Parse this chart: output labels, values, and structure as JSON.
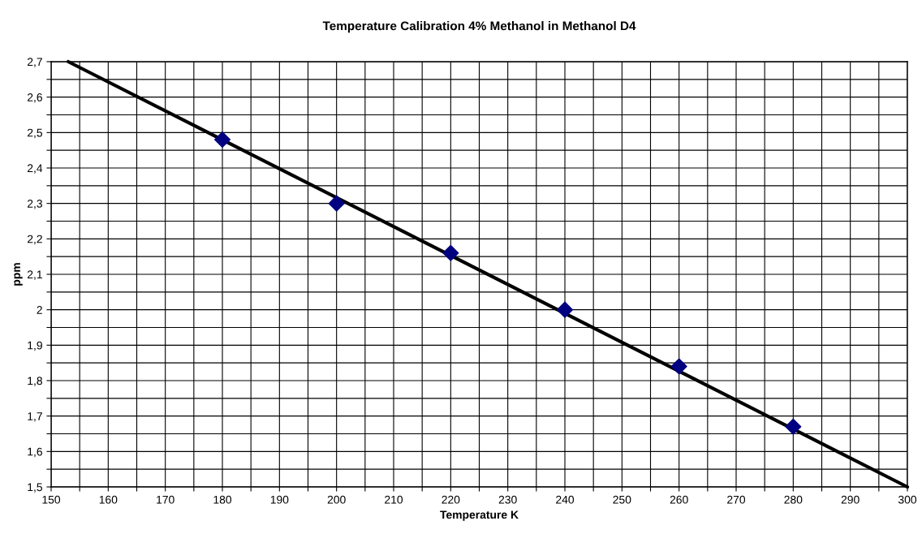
{
  "chart_data": {
    "type": "scatter",
    "title": "Temperature Calibration 4% Methanol in Methanol D4",
    "xlabel": "Temperature K",
    "ylabel": "ppm",
    "series": [
      {
        "color": "#000080",
        "marker": "diamond",
        "x": [
          180,
          200,
          220,
          240,
          260,
          280
        ],
        "values": [
          2.48,
          2.3,
          2.16,
          2.0,
          1.84,
          1.67
        ]
      },
      {
        "type": "line",
        "color": "#000000",
        "marker": "none",
        "line_style": "solid",
        "x": [
          153,
          300
        ],
        "values": [
          2.7,
          1.5
        ]
      }
    ],
    "xlim": [
      150,
      300
    ],
    "ylim": [
      1.5,
      2.7
    ],
    "xticks": [
      150,
      {
        "value": 155,
        "label": null
      },
      160,
      {
        "value": 165,
        "label": null
      },
      170,
      {
        "value": 175,
        "label": null
      },
      180,
      {
        "value": 185,
        "label": null
      },
      190,
      {
        "value": 195,
        "label": null
      },
      200,
      {
        "value": 205,
        "label": null
      },
      210,
      {
        "value": 215,
        "label": null
      },
      220,
      {
        "value": 225,
        "label": null
      },
      230,
      {
        "value": 235,
        "label": null
      },
      240,
      {
        "value": 245,
        "label": null
      },
      250,
      {
        "value": 255,
        "label": null
      },
      260,
      {
        "value": 265,
        "label": null
      },
      270,
      {
        "value": 275,
        "label": null
      },
      280,
      {
        "value": 285,
        "label": null
      },
      290,
      {
        "value": 295,
        "label": null
      },
      300
    ],
    "yticks": [
      {
        "value": 1.5,
        "label": "1,5"
      },
      {
        "value": 1.55,
        "label": null
      },
      {
        "value": 1.6,
        "label": "1,6"
      },
      {
        "value": 1.65,
        "label": null
      },
      {
        "value": 1.7,
        "label": "1,7"
      },
      {
        "value": 1.75,
        "label": null
      },
      {
        "value": 1.8,
        "label": "1,8"
      },
      {
        "value": 1.85,
        "label": null
      },
      {
        "value": 1.9,
        "label": "1,9"
      },
      {
        "value": 1.95,
        "label": null
      },
      {
        "value": 2,
        "label": "2"
      },
      {
        "value": 2.05,
        "label": null
      },
      {
        "value": 2.1,
        "label": "2,1"
      },
      {
        "value": 2.15,
        "label": null
      },
      {
        "value": 2.2,
        "label": "2,2"
      },
      {
        "value": 2.25,
        "label": null
      },
      {
        "value": 2.3,
        "label": "2,3"
      },
      {
        "value": 2.35,
        "label": null
      },
      {
        "value": 2.4,
        "label": "2,4"
      },
      {
        "value": 2.45,
        "label": null
      },
      {
        "value": 2.5,
        "label": "2,5"
      },
      {
        "value": 2.55,
        "label": null
      },
      {
        "value": 2.6,
        "label": "2,6"
      },
      {
        "value": 2.65,
        "label": null
      },
      {
        "value": 2.7,
        "label": "2,7"
      }
    ],
    "grid": true
  }
}
